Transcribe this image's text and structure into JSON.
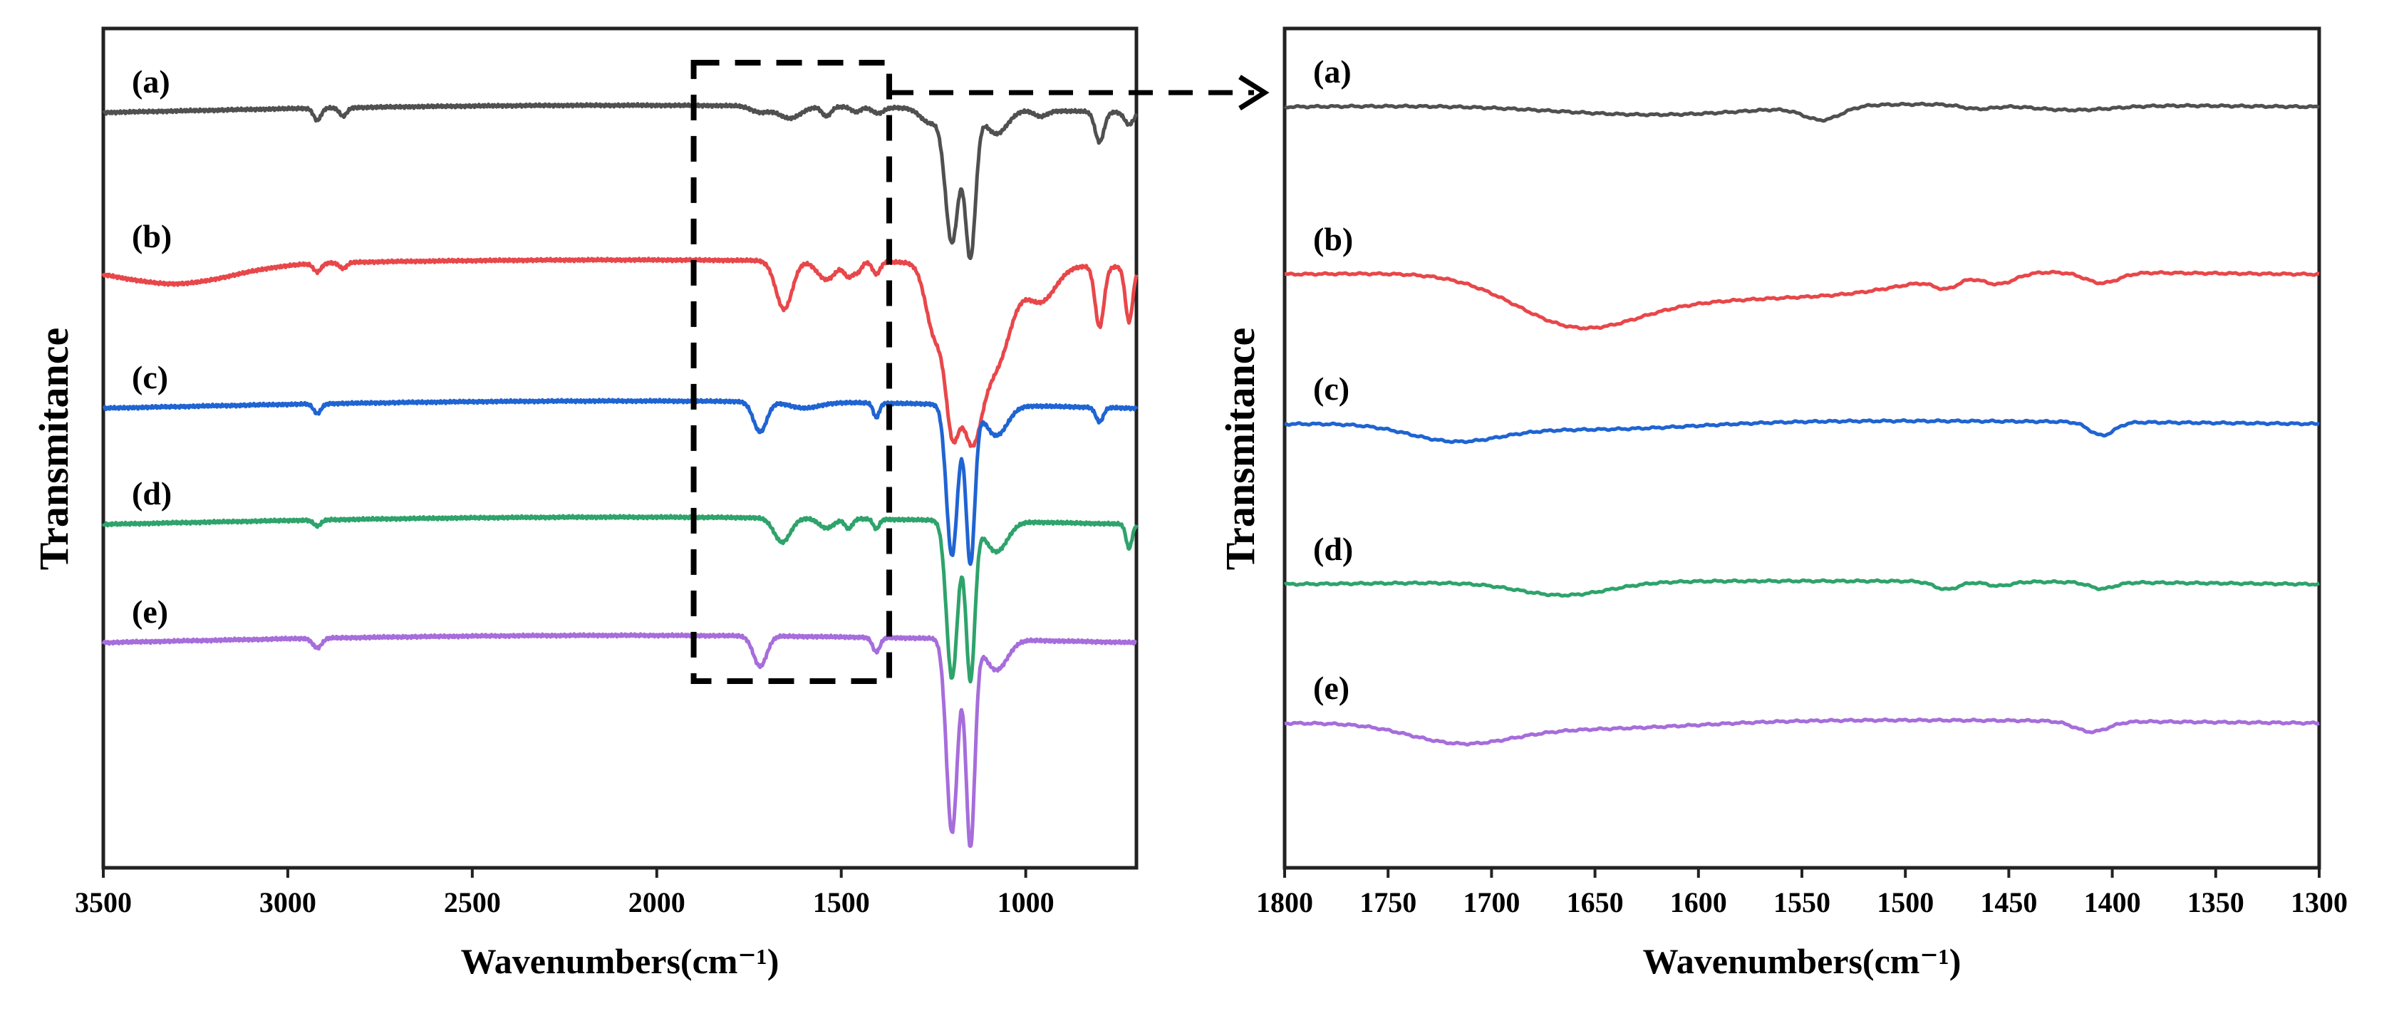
{
  "chart_data": [
    {
      "type": "line",
      "title": "",
      "xlabel": "Wavenumbers(cm⁻¹)",
      "ylabel": "Transmitance",
      "xlim": [
        3500,
        700
      ],
      "xticks": [
        3500,
        3000,
        2500,
        2000,
        1500,
        1000
      ],
      "yticks": false,
      "grid": false,
      "annotation": "dashed box from 1900 to 1370 cm⁻¹ with dashed arrow pointing to zoomed panel",
      "highlight_range": [
        1900,
        1370
      ],
      "series": [
        {
          "name": "(a)",
          "color": "#505050",
          "baseline": 0,
          "features": [
            {
              "c": 2920,
              "d": 0.1,
              "w": 10
            },
            {
              "c": 2850,
              "d": 0.07,
              "w": 10
            },
            {
              "c": 1720,
              "d": 0.05,
              "w": 25
            },
            {
              "c": 1640,
              "d": 0.1,
              "w": 30
            },
            {
              "c": 1540,
              "d": 0.08,
              "w": 12
            },
            {
              "c": 1460,
              "d": 0.04,
              "w": 12
            },
            {
              "c": 1400,
              "d": 0.05,
              "w": 15
            },
            {
              "c": 1260,
              "d": 0.12,
              "w": 25
            },
            {
              "c": 1200,
              "d": 1.1,
              "w": 18
            },
            {
              "c": 1150,
              "d": 1.2,
              "w": 14
            },
            {
              "c": 1080,
              "d": 0.2,
              "w": 30
            },
            {
              "c": 960,
              "d": 0.05,
              "w": 18
            },
            {
              "c": 800,
              "d": 0.25,
              "w": 12
            },
            {
              "c": 720,
              "d": 0.1,
              "w": 12
            }
          ]
        },
        {
          "name": "(b)",
          "color": "#e8474a",
          "baseline": 1,
          "features": [
            {
              "c": 3300,
              "d": 0.15,
              "w": 150
            },
            {
              "c": 2920,
              "d": 0.07,
              "w": 10
            },
            {
              "c": 2850,
              "d": 0.05,
              "w": 10
            },
            {
              "c": 1655,
              "d": 0.4,
              "w": 22
            },
            {
              "c": 1540,
              "d": 0.15,
              "w": 25
            },
            {
              "c": 1480,
              "d": 0.12,
              "w": 12
            },
            {
              "c": 1455,
              "d": 0.08,
              "w": 10
            },
            {
              "c": 1405,
              "d": 0.1,
              "w": 10
            },
            {
              "c": 1245,
              "d": 0.6,
              "w": 25
            },
            {
              "c": 1200,
              "d": 1.0,
              "w": 18
            },
            {
              "c": 1150,
              "d": 1.3,
              "w": 30
            },
            {
              "c": 1080,
              "d": 0.8,
              "w": 40
            },
            {
              "c": 960,
              "d": 0.3,
              "w": 40
            },
            {
              "c": 800,
              "d": 0.5,
              "w": 12
            },
            {
              "c": 720,
              "d": 0.45,
              "w": 10
            }
          ]
        },
        {
          "name": "(c)",
          "color": "#1f64d2",
          "baseline": 2,
          "features": [
            {
              "c": 2920,
              "d": 0.08,
              "w": 10
            },
            {
              "c": 1720,
              "d": 0.25,
              "w": 18
            },
            {
              "c": 1600,
              "d": 0.05,
              "w": 40
            },
            {
              "c": 1405,
              "d": 0.12,
              "w": 8
            },
            {
              "c": 1200,
              "d": 1.25,
              "w": 15
            },
            {
              "c": 1150,
              "d": 1.3,
              "w": 12
            },
            {
              "c": 1080,
              "d": 0.25,
              "w": 30
            },
            {
              "c": 800,
              "d": 0.12,
              "w": 10
            }
          ]
        },
        {
          "name": "(d)",
          "color": "#2ea36b",
          "baseline": 3,
          "features": [
            {
              "c": 2920,
              "d": 0.05,
              "w": 10
            },
            {
              "c": 1660,
              "d": 0.2,
              "w": 22
            },
            {
              "c": 1540,
              "d": 0.08,
              "w": 20
            },
            {
              "c": 1480,
              "d": 0.08,
              "w": 10
            },
            {
              "c": 1405,
              "d": 0.08,
              "w": 8
            },
            {
              "c": 1200,
              "d": 1.3,
              "w": 15
            },
            {
              "c": 1150,
              "d": 1.3,
              "w": 12
            },
            {
              "c": 1080,
              "d": 0.25,
              "w": 30
            },
            {
              "c": 720,
              "d": 0.2,
              "w": 8
            }
          ]
        },
        {
          "name": "(e)",
          "color": "#a66ddb",
          "baseline": 4,
          "features": [
            {
              "c": 2920,
              "d": 0.08,
              "w": 12
            },
            {
              "c": 1720,
              "d": 0.25,
              "w": 18
            },
            {
              "c": 1405,
              "d": 0.12,
              "w": 10
            },
            {
              "c": 1200,
              "d": 1.6,
              "w": 15
            },
            {
              "c": 1150,
              "d": 1.7,
              "w": 12
            },
            {
              "c": 1080,
              "d": 0.25,
              "w": 30
            }
          ]
        }
      ]
    },
    {
      "type": "line",
      "title": "",
      "xlabel": "Wavenumbers(cm⁻¹)",
      "ylabel": "Transmitance",
      "xlim": [
        1800,
        1300
      ],
      "xticks": [
        1800,
        1750,
        1700,
        1650,
        1600,
        1550,
        1500,
        1450,
        1400,
        1350,
        1300
      ],
      "yticks": false,
      "grid": false,
      "series": [
        {
          "name": "(a)",
          "color": "#505050",
          "baseline": 0,
          "features": [
            {
              "c": 1620,
              "d": 0.2,
              "w": 50
            },
            {
              "c": 1540,
              "d": 0.25,
              "w": 9
            },
            {
              "c": 1465,
              "d": 0.08,
              "w": 8
            },
            {
              "c": 1420,
              "d": 0.1,
              "w": 20
            }
          ]
        },
        {
          "name": "(b)",
          "color": "#e8474a",
          "baseline": 1,
          "features": [
            {
              "c": 1660,
              "d": 0.85,
              "w": 30
            },
            {
              "c": 1590,
              "d": 0.5,
              "w": 50
            },
            {
              "c": 1520,
              "d": 0.2,
              "w": 30
            },
            {
              "c": 1480,
              "d": 0.2,
              "w": 6
            },
            {
              "c": 1455,
              "d": 0.2,
              "w": 8
            },
            {
              "c": 1405,
              "d": 0.2,
              "w": 8
            }
          ]
        },
        {
          "name": "(c)",
          "color": "#1f64d2",
          "baseline": 2,
          "features": [
            {
              "c": 1718,
              "d": 0.3,
              "w": 22
            },
            {
              "c": 1650,
              "d": 0.15,
              "w": 50
            },
            {
              "c": 1405,
              "d": 0.25,
              "w": 6
            }
          ]
        },
        {
          "name": "(d)",
          "color": "#2ea36b",
          "baseline": 3,
          "features": [
            {
              "c": 1665,
              "d": 0.25,
              "w": 22
            },
            {
              "c": 1480,
              "d": 0.15,
              "w": 6
            },
            {
              "c": 1455,
              "d": 0.08,
              "w": 6
            },
            {
              "c": 1405,
              "d": 0.12,
              "w": 6
            }
          ]
        },
        {
          "name": "(e)",
          "color": "#a66ddb",
          "baseline": 4,
          "features": [
            {
              "c": 1715,
              "d": 0.35,
              "w": 25
            },
            {
              "c": 1650,
              "d": 0.15,
              "w": 50
            },
            {
              "c": 1410,
              "d": 0.2,
              "w": 8
            }
          ]
        }
      ]
    }
  ],
  "legend": "none",
  "arrow_style": "dashed"
}
